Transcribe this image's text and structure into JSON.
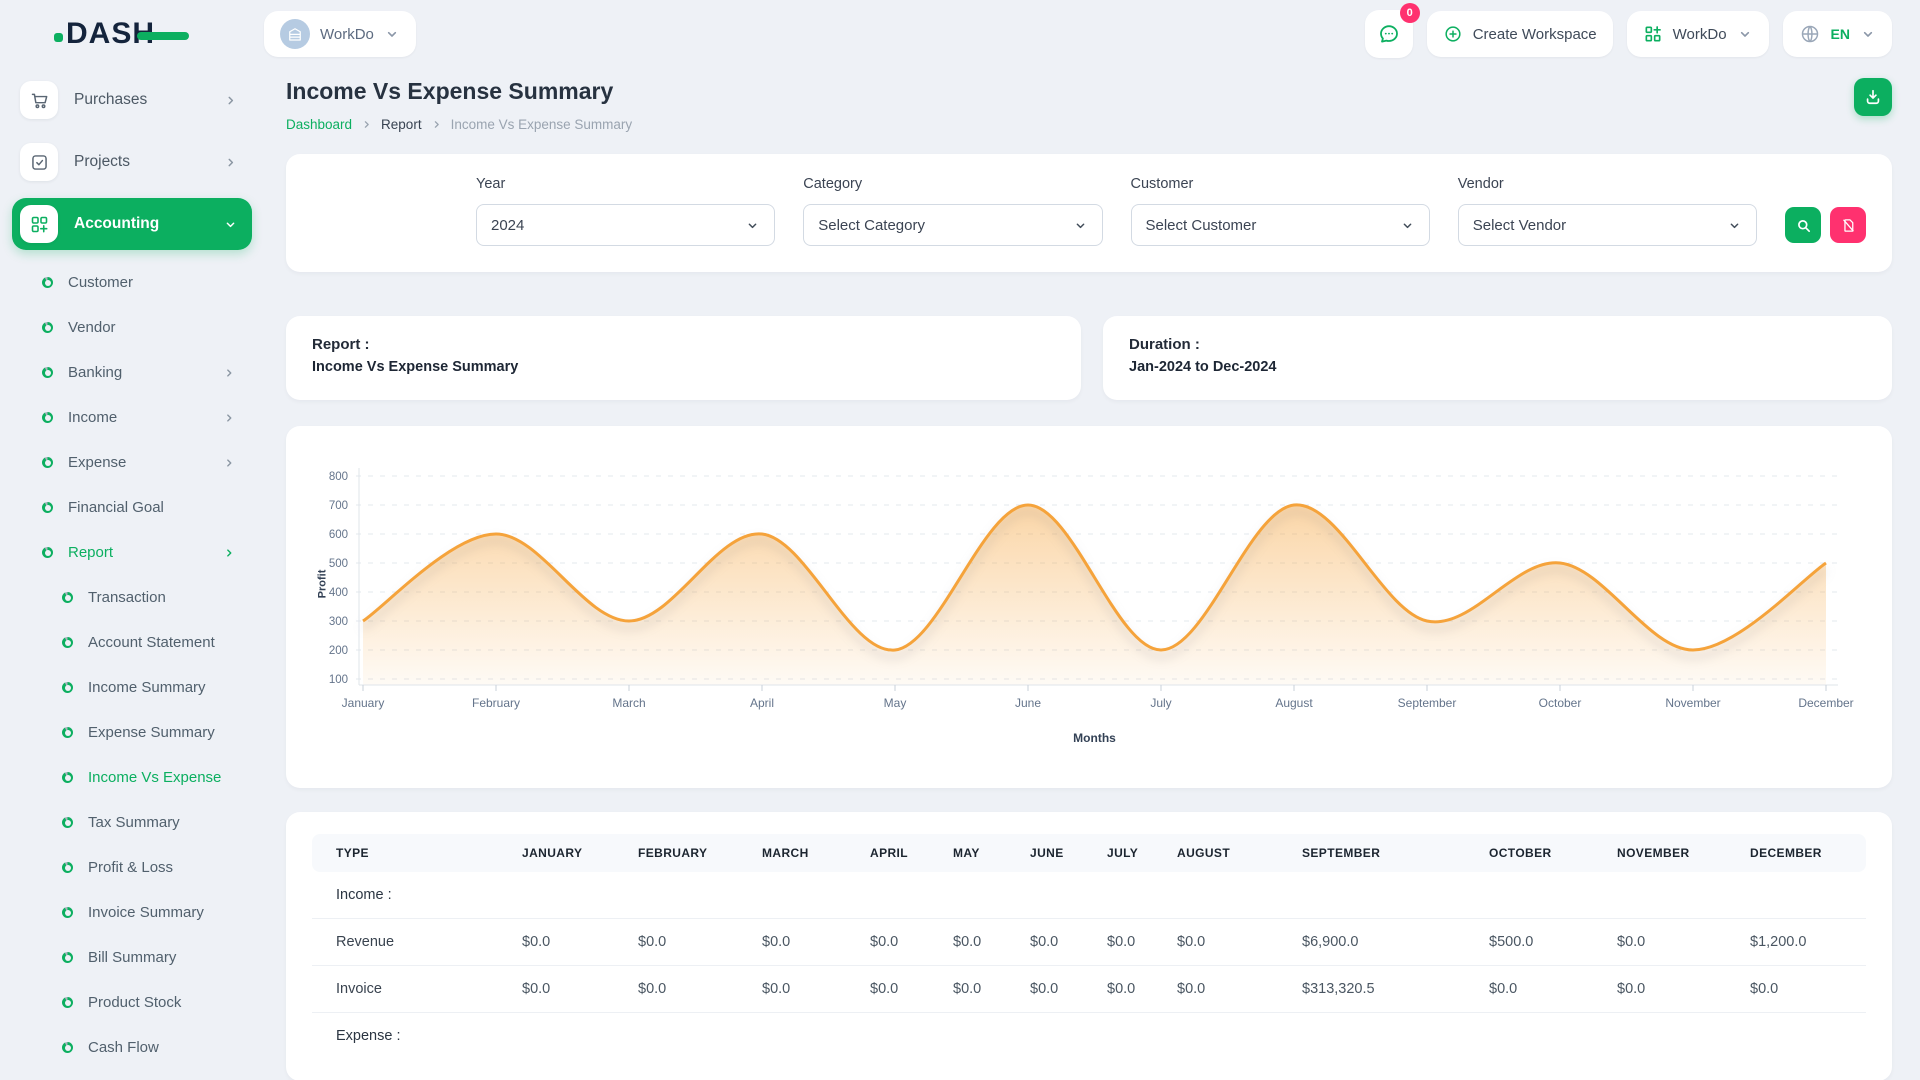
{
  "brand": {
    "logo_text": "DASH"
  },
  "header": {
    "workspace": {
      "label": "WorkDo",
      "icon": "building-icon"
    },
    "messages": {
      "badge": "0",
      "icon": "chat-icon"
    },
    "create_workspace": {
      "label": "Create Workspace",
      "icon": "plus-circle-icon"
    },
    "app_menu": {
      "label": "WorkDo",
      "icon": "grid-plus-icon"
    },
    "language": {
      "label": "EN",
      "icon": "globe-icon"
    }
  },
  "sidebar": {
    "top_items": [
      {
        "label": "Purchases",
        "icon": "cart",
        "chevron": "right"
      },
      {
        "label": "Projects",
        "icon": "check-square",
        "chevron": "right"
      },
      {
        "label": "Accounting",
        "icon": "modules",
        "chevron": "down",
        "active": true
      }
    ],
    "accounting_items": [
      {
        "label": "Customer"
      },
      {
        "label": "Vendor"
      },
      {
        "label": "Banking",
        "chevron": "right"
      },
      {
        "label": "Income",
        "chevron": "right"
      },
      {
        "label": "Expense",
        "chevron": "right"
      },
      {
        "label": "Financial Goal"
      },
      {
        "label": "Report",
        "chevron": "right",
        "active": true
      }
    ],
    "report_items": [
      {
        "label": "Transaction"
      },
      {
        "label": "Account Statement"
      },
      {
        "label": "Income Summary"
      },
      {
        "label": "Expense Summary"
      },
      {
        "label": "Income Vs Expense",
        "active": true
      },
      {
        "label": "Tax Summary"
      },
      {
        "label": "Profit & Loss"
      },
      {
        "label": "Invoice Summary"
      },
      {
        "label": "Bill Summary"
      },
      {
        "label": "Product Stock"
      },
      {
        "label": "Cash Flow"
      }
    ]
  },
  "page": {
    "title": "Income Vs Expense Summary",
    "breadcrumb": [
      "Dashboard",
      "Report",
      "Income Vs Expense Summary"
    ]
  },
  "filters": {
    "fields": [
      {
        "name": "year",
        "label": "Year",
        "value": "2024"
      },
      {
        "name": "category",
        "label": "Category",
        "value": "Select Category"
      },
      {
        "name": "customer",
        "label": "Customer",
        "value": "Select Customer"
      },
      {
        "name": "vendor",
        "label": "Vendor",
        "value": "Select Vendor"
      }
    ],
    "buttons": [
      {
        "name": "search",
        "icon": "search",
        "color": "#0CAF60"
      },
      {
        "name": "reset",
        "icon": "file-slash",
        "color": "#FF316F"
      }
    ]
  },
  "summary_cards": [
    {
      "title": "Report :",
      "value": "Income Vs Expense Summary"
    },
    {
      "title": "Duration :",
      "value": "Jan-2024 to Dec-2024"
    }
  ],
  "chart_data": {
    "type": "area",
    "x": [
      "January",
      "February",
      "March",
      "April",
      "May",
      "June",
      "July",
      "August",
      "September",
      "October",
      "November",
      "December"
    ],
    "series": [
      {
        "name": "Profit",
        "values": [
          300,
          600,
          300,
          600,
          200,
          700,
          200,
          700,
          300,
          500,
          200,
          500
        ]
      }
    ],
    "title": "",
    "xlabel": "Months",
    "ylabel": "Profit",
    "ylim": [
      100,
      800
    ],
    "ytick_step": 100,
    "grid": true,
    "legend": false,
    "line_color": "#F5A33B"
  },
  "table": {
    "columns": [
      "TYPE",
      "JANUARY",
      "FEBRUARY",
      "MARCH",
      "APRIL",
      "MAY",
      "JUNE",
      "JULY",
      "AUGUST",
      "SEPTEMBER",
      "OCTOBER",
      "NOVEMBER",
      "DECEMBER"
    ],
    "sections": [
      {
        "label": "Income :",
        "rows": [
          {
            "type": "Revenue",
            "values": [
              "$0.0",
              "$0.0",
              "$0.0",
              "$0.0",
              "$0.0",
              "$0.0",
              "$0.0",
              "$0.0",
              "$6,900.0",
              "$500.0",
              "$0.0",
              "$1,200.0"
            ]
          },
          {
            "type": "Invoice",
            "values": [
              "$0.0",
              "$0.0",
              "$0.0",
              "$0.0",
              "$0.0",
              "$0.0",
              "$0.0",
              "$0.0",
              "$313,320.5",
              "$0.0",
              "$0.0",
              "$0.0"
            ]
          }
        ]
      },
      {
        "label": "Expense :",
        "rows": []
      }
    ]
  },
  "colors": {
    "primary": "#0CAF60",
    "danger": "#FF316F",
    "chart_line": "#F5A33B",
    "badge": "#FF316F"
  }
}
